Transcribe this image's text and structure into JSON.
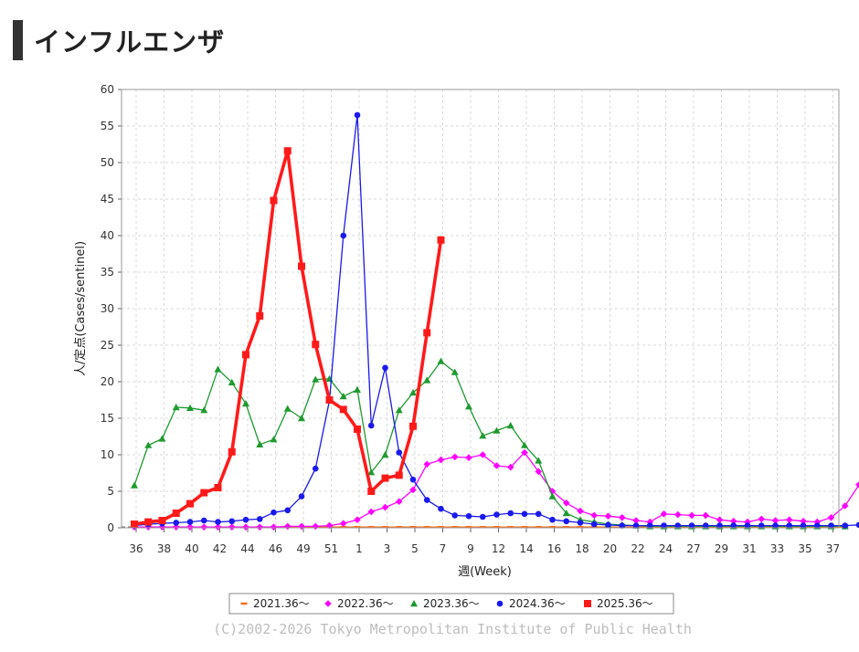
{
  "header": {
    "title": "インフルエンザ"
  },
  "copyright": "(C)2002-2026 Tokyo Metropolitan Institute of Public Health",
  "chart_data": {
    "type": "line",
    "xlabel": "週(Week)",
    "ylabel": "人/定点(Cases/sentinel)",
    "ylim": [
      0,
      60
    ],
    "yticks": [
      0,
      5,
      10,
      15,
      20,
      25,
      30,
      35,
      40,
      45,
      50,
      55,
      60
    ],
    "x_tick_labels": [
      "36",
      "38",
      "40",
      "42",
      "44",
      "46",
      "49",
      "51",
      "1",
      "3",
      "5",
      "7",
      "9",
      "12",
      "14",
      "16",
      "18",
      "20",
      "22",
      "24",
      "27",
      "29",
      "31",
      "33",
      "35",
      "37"
    ],
    "grid": true,
    "legend_position": "bottom",
    "series": [
      {
        "name": "2021.36〜",
        "color": "#ff6a13",
        "marker": "dash",
        "values": [
          0.1,
          0.1,
          0.1,
          0.1,
          0.1,
          0.1,
          0.1,
          0.1,
          0.1,
          0.1,
          0.1,
          0.1,
          0.1,
          0.1,
          0.1,
          0.1,
          0.1,
          0.1,
          0.1,
          0.1,
          0.1,
          0.1,
          0.1,
          0.1,
          0.1,
          0.1,
          0.1,
          0.1,
          0.1,
          0.1,
          0.1,
          0.1,
          0.1,
          0.1,
          0.1,
          0.1,
          0.1,
          0.1,
          0.1,
          0.1,
          0.1,
          0.1,
          0.1,
          0.1,
          0.1,
          0.1,
          0.1,
          0.1,
          0.1,
          0.1,
          0.1,
          0.1
        ]
      },
      {
        "name": "2022.36〜",
        "color": "#ff00ff",
        "marker": "diamond",
        "values": [
          0.1,
          0.1,
          0.1,
          0.1,
          0.1,
          0.1,
          0.1,
          0.1,
          0.1,
          0.1,
          0.1,
          0.2,
          0.2,
          0.2,
          0.3,
          0.6,
          1.1,
          2.2,
          2.8,
          3.6,
          5.2,
          8.7,
          9.3,
          9.7,
          9.6,
          10.0,
          8.5,
          8.3,
          10.3,
          7.7,
          5.0,
          3.4,
          2.3,
          1.7,
          1.6,
          1.4,
          1.0,
          0.8,
          1.9,
          1.8,
          1.7,
          1.7,
          1.1,
          0.9,
          0.8,
          1.2,
          1.0,
          1.1,
          0.9,
          0.8,
          1.4,
          3.0,
          5.9
        ]
      },
      {
        "name": "2023.36〜",
        "color": "#1e9a2e",
        "marker": "triangle",
        "values": [
          5.8,
          11.3,
          12.2,
          16.5,
          16.4,
          16.1,
          21.7,
          19.9,
          17.0,
          11.4,
          12.1,
          16.3,
          15.0,
          20.3,
          20.4,
          18.0,
          18.9,
          7.6,
          10.0,
          16.1,
          18.5,
          20.2,
          22.8,
          21.3,
          16.6,
          12.6,
          13.3,
          14.0,
          11.3,
          9.2,
          4.3,
          2.0,
          1.1,
          0.8,
          0.5,
          0.4,
          0.3,
          0.2,
          0.2,
          0.2,
          0.2,
          0.2,
          0.2,
          0.2,
          0.2,
          0.2,
          0.2,
          0.2,
          0.2,
          0.2,
          0.2,
          0.2
        ]
      },
      {
        "name": "2024.36〜",
        "color": "#1a1aee",
        "marker": "circle",
        "values": [
          0.3,
          0.5,
          0.6,
          0.7,
          0.8,
          1.0,
          0.8,
          0.9,
          1.1,
          1.2,
          2.1,
          2.4,
          4.3,
          8.1,
          17.4,
          40.0,
          56.5,
          14.0,
          21.9,
          10.3,
          6.6,
          3.8,
          2.6,
          1.7,
          1.6,
          1.5,
          1.8,
          2.0,
          1.9,
          1.9,
          1.1,
          0.9,
          0.7,
          0.5,
          0.4,
          0.3,
          0.3,
          0.3,
          0.3,
          0.3,
          0.3,
          0.3,
          0.3,
          0.3,
          0.3,
          0.3,
          0.3,
          0.3,
          0.3,
          0.3,
          0.3,
          0.3,
          0.4
        ]
      },
      {
        "name": "2025.36〜",
        "color": "#ff1a1a",
        "marker": "square",
        "values": [
          0.5,
          0.8,
          1.0,
          2.0,
          3.3,
          4.8,
          5.5,
          10.4,
          23.7,
          29.0,
          44.8,
          51.6,
          35.8,
          25.1,
          17.5,
          16.2,
          13.5,
          5.0,
          6.8,
          7.2,
          13.9,
          26.7,
          39.4
        ]
      }
    ]
  }
}
